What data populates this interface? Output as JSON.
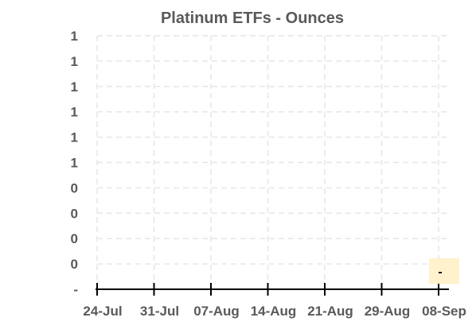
{
  "chart_data": {
    "type": "line",
    "title": "Platinum ETFs - Ounces",
    "xlabel": "",
    "ylabel": "",
    "categories": [
      "24-Jul",
      "31-Jul",
      "07-Aug",
      "14-Aug",
      "21-Aug",
      "29-Aug",
      "08-Sep"
    ],
    "y_tick_labels": [
      "-",
      "0",
      "0",
      "0",
      "0",
      "1",
      "1",
      "1",
      "1",
      "1",
      "1"
    ],
    "series": [
      {
        "values": [
          0,
          0,
          0,
          0,
          0,
          0,
          0
        ]
      }
    ],
    "last_point_label": "-",
    "ylim": [
      0,
      1
    ],
    "grid": true,
    "colors": {
      "grid": "#e6e6e6",
      "label_box": "#fff2cc",
      "text": "#595959"
    }
  }
}
